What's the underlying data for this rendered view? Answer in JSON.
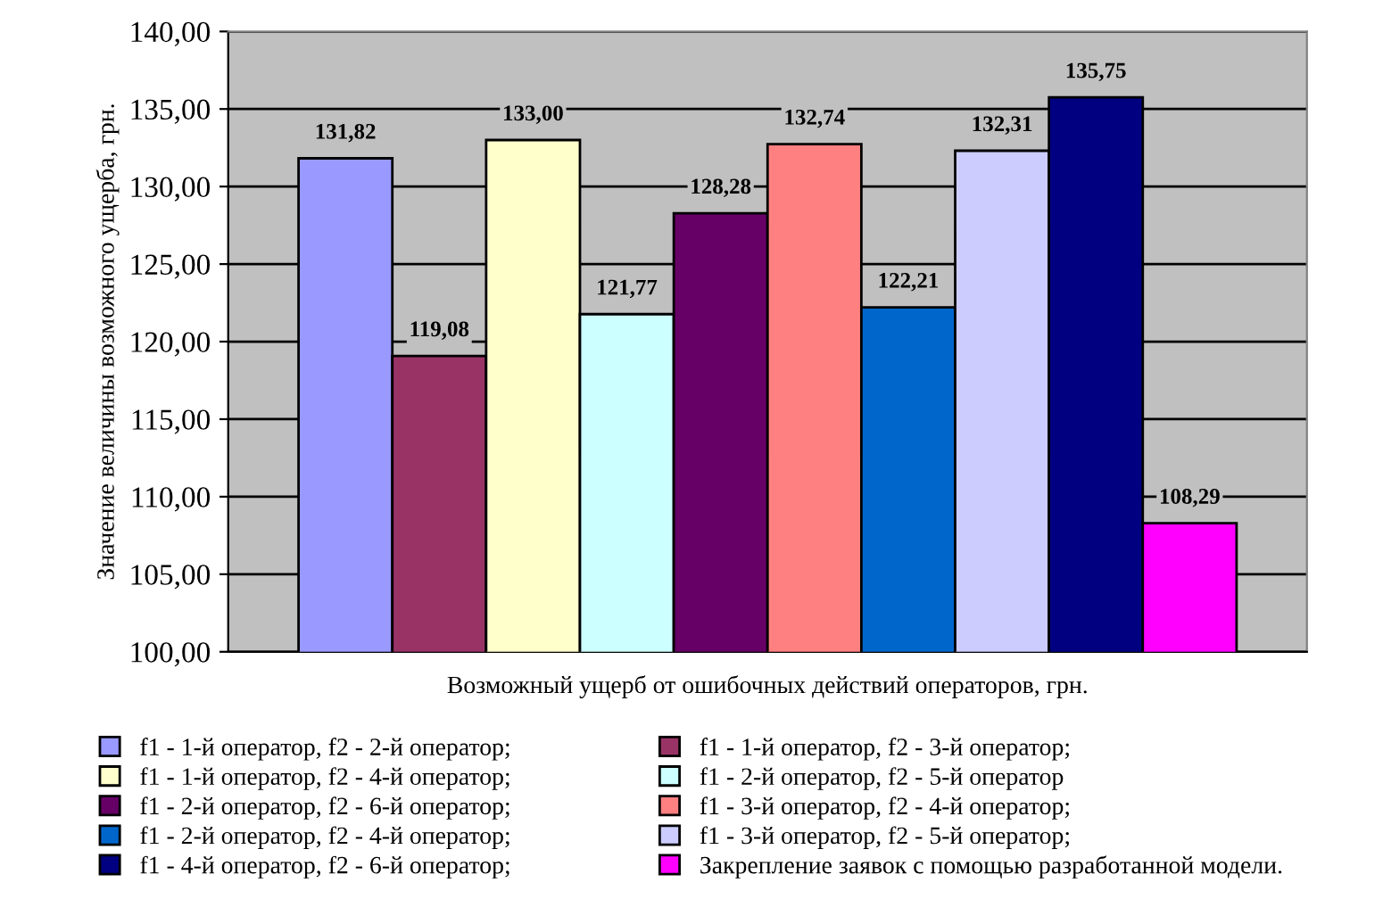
{
  "chart_data": {
    "type": "bar",
    "xlabel": "Возможный ущерб от ошибочных действий операторов, грн.",
    "ylabel": "Значение величины возможного ущерба, грн.",
    "categories": [
      null
    ],
    "series": [
      {
        "name": "f1 - 1-й оператор, f2 - 2-й оператор;",
        "color": "#9999ff",
        "values": [
          131.82
        ],
        "value_labels": [
          "131,82"
        ]
      },
      {
        "name": "f1 - 1-й оператор, f2 - 3-й оператор;",
        "color": "#993366",
        "values": [
          119.08
        ],
        "value_labels": [
          "119,08"
        ]
      },
      {
        "name": "f1 - 1-й оператор, f2 - 4-й оператор;",
        "color": "#ffffcc",
        "values": [
          133.0
        ],
        "value_labels": [
          "133,00"
        ]
      },
      {
        "name": "f1 - 2-й оператор, f2 - 5-й оператор",
        "color": "#ccffff",
        "values": [
          121.77
        ],
        "value_labels": [
          "121,77"
        ]
      },
      {
        "name": "f1 - 2-й оператор, f2 - 6-й оператор;",
        "color": "#660066",
        "values": [
          128.28
        ],
        "value_labels": [
          "128,28"
        ]
      },
      {
        "name": "f1 - 3-й оператор, f2 - 4-й оператор;",
        "color": "#ff8080",
        "values": [
          132.74
        ],
        "value_labels": [
          "132,74"
        ]
      },
      {
        "name": "f1 - 2-й оператор, f2 - 4-й оператор;",
        "color": "#0066cc",
        "values": [
          122.21
        ],
        "value_labels": [
          "122,21"
        ]
      },
      {
        "name": "f1 - 3-й оператор, f2 - 5-й оператор;",
        "color": "#ccccff",
        "values": [
          132.31
        ],
        "value_labels": [
          "132,31"
        ]
      },
      {
        "name": "f1 - 4-й оператор, f2 - 6-й оператор;",
        "color": "#000080",
        "values": [
          135.75
        ],
        "value_labels": [
          "135,75"
        ]
      },
      {
        "name": "Закрепление заявок с помощью разработанной модели.",
        "color": "#ff00ff",
        "values": [
          108.29
        ],
        "value_labels": [
          "108,29"
        ]
      }
    ],
    "ylim": [
      100,
      140
    ],
    "yticks": [
      {
        "value": 100,
        "label": "100,00"
      },
      {
        "value": 105,
        "label": "105,00"
      },
      {
        "value": 110,
        "label": "110,00"
      },
      {
        "value": 115,
        "label": "115,00"
      },
      {
        "value": 120,
        "label": "120,00"
      },
      {
        "value": 125,
        "label": "125,00"
      },
      {
        "value": 130,
        "label": "130,00"
      },
      {
        "value": 135,
        "label": "135,00"
      },
      {
        "value": 140,
        "label": "140,00"
      }
    ],
    "grid": "y",
    "legend": "bottom"
  }
}
